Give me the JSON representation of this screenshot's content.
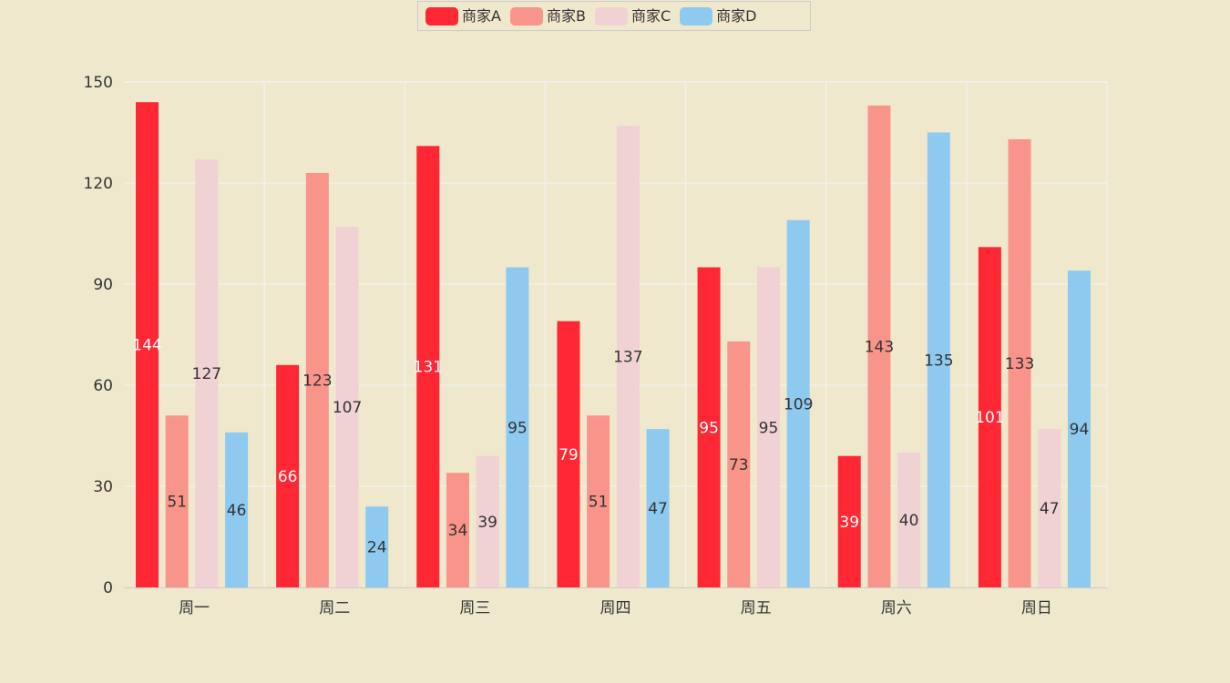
{
  "chart_data": {
    "type": "bar",
    "categories": [
      "周一",
      "周二",
      "周三",
      "周四",
      "周五",
      "周六",
      "周日"
    ],
    "series": [
      {
        "name": "商家A",
        "values": [
          144,
          66,
          131,
          79,
          95,
          39,
          101
        ],
        "color": "#ff2733",
        "label_color": "#ffffff"
      },
      {
        "name": "商家B",
        "values": [
          51,
          123,
          34,
          51,
          73,
          143,
          133
        ],
        "color": "#f9948a",
        "label_color": "#333333"
      },
      {
        "name": "商家C",
        "values": [
          127,
          107,
          39,
          137,
          95,
          40,
          47
        ],
        "color": "#f0d1d4",
        "label_color": "#333333"
      },
      {
        "name": "商家D",
        "values": [
          46,
          24,
          95,
          47,
          109,
          135,
          94
        ],
        "color": "#8ecaf0",
        "label_color": "#333333"
      }
    ],
    "y_ticks": [
      "0",
      "30",
      "60",
      "90",
      "120",
      "150"
    ],
    "ylim": [
      0,
      150
    ],
    "grid": true,
    "legend_position": "top-center",
    "data_labels": "inside-middle"
  }
}
